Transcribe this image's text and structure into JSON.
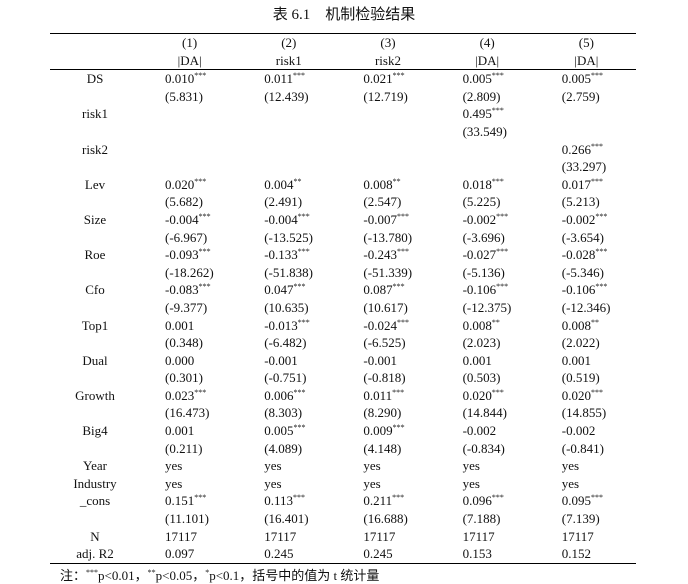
{
  "header": {
    "title": "表 6.1　机制检验结果"
  },
  "table": {
    "columns": [
      {
        "number": "(1)",
        "dep": "|DA|"
      },
      {
        "number": "(2)",
        "dep": "risk1"
      },
      {
        "number": "(3)",
        "dep": "risk2"
      },
      {
        "number": "(4)",
        "dep": "|DA|"
      },
      {
        "number": "(5)",
        "dep": "|DA|"
      }
    ],
    "rows": [
      {
        "label": "DS",
        "coef": [
          {
            "value": "0.010",
            "stars": "***"
          },
          {
            "value": "0.011",
            "stars": "***"
          },
          {
            "value": "0.021",
            "stars": "***"
          },
          {
            "value": "0.005",
            "stars": "***"
          },
          {
            "value": "0.005",
            "stars": "***"
          }
        ],
        "t": [
          "(5.831)",
          "(12.439)",
          "(12.719)",
          "(2.809)",
          "(2.759)"
        ]
      },
      {
        "label": "risk1",
        "coef": [
          null,
          null,
          null,
          {
            "value": "0.495",
            "stars": "***"
          },
          null
        ],
        "t": [
          null,
          null,
          null,
          "(33.549)",
          null
        ]
      },
      {
        "label": "risk2",
        "coef": [
          null,
          null,
          null,
          null,
          {
            "value": "0.266",
            "stars": "***"
          }
        ],
        "t": [
          null,
          null,
          null,
          null,
          "(33.297)"
        ]
      },
      {
        "label": "Lev",
        "coef": [
          {
            "value": "0.020",
            "stars": "***"
          },
          {
            "value": "0.004",
            "stars": "**"
          },
          {
            "value": "0.008",
            "stars": "**"
          },
          {
            "value": "0.018",
            "stars": "***"
          },
          {
            "value": "0.017",
            "stars": "***"
          }
        ],
        "t": [
          "(5.682)",
          "(2.491)",
          "(2.547)",
          "(5.225)",
          "(5.213)"
        ]
      },
      {
        "label": "Size",
        "coef": [
          {
            "value": "-0.004",
            "stars": "***"
          },
          {
            "value": "-0.004",
            "stars": "***"
          },
          {
            "value": "-0.007",
            "stars": "***"
          },
          {
            "value": "-0.002",
            "stars": "***"
          },
          {
            "value": "-0.002",
            "stars": "***"
          }
        ],
        "t": [
          "(-6.967)",
          "(-13.525)",
          "(-13.780)",
          "(-3.696)",
          "(-3.654)"
        ]
      },
      {
        "label": "Roe",
        "coef": [
          {
            "value": "-0.093",
            "stars": "***"
          },
          {
            "value": "-0.133",
            "stars": "***"
          },
          {
            "value": "-0.243",
            "stars": "***"
          },
          {
            "value": "-0.027",
            "stars": "***"
          },
          {
            "value": "-0.028",
            "stars": "***"
          }
        ],
        "t": [
          "(-18.262)",
          "(-51.838)",
          "(-51.339)",
          "(-5.136)",
          "(-5.346)"
        ]
      },
      {
        "label": "Cfo",
        "coef": [
          {
            "value": "-0.083",
            "stars": "***"
          },
          {
            "value": "0.047",
            "stars": "***"
          },
          {
            "value": "0.087",
            "stars": "***"
          },
          {
            "value": "-0.106",
            "stars": "***"
          },
          {
            "value": "-0.106",
            "stars": "***"
          }
        ],
        "t": [
          "(-9.377)",
          "(10.635)",
          "(10.617)",
          "(-12.375)",
          "(-12.346)"
        ]
      },
      {
        "label": "Top1",
        "coef": [
          {
            "value": "0.001",
            "stars": null
          },
          {
            "value": "-0.013",
            "stars": "***"
          },
          {
            "value": "-0.024",
            "stars": "***"
          },
          {
            "value": "0.008",
            "stars": "**"
          },
          {
            "value": "0.008",
            "stars": "**"
          }
        ],
        "t": [
          "(0.348)",
          "(-6.482)",
          "(-6.525)",
          "(2.023)",
          "(2.022)"
        ]
      },
      {
        "label": "Dual",
        "coef": [
          {
            "value": "0.000",
            "stars": null
          },
          {
            "value": "-0.001",
            "stars": null
          },
          {
            "value": "-0.001",
            "stars": null
          },
          {
            "value": "0.001",
            "stars": null
          },
          {
            "value": "0.001",
            "stars": null
          }
        ],
        "t": [
          "(0.301)",
          "(-0.751)",
          "(-0.818)",
          "(0.503)",
          "(0.519)"
        ]
      },
      {
        "label": "Growth",
        "coef": [
          {
            "value": "0.023",
            "stars": "***"
          },
          {
            "value": "0.006",
            "stars": "***"
          },
          {
            "value": "0.011",
            "stars": "***"
          },
          {
            "value": "0.020",
            "stars": "***"
          },
          {
            "value": "0.020",
            "stars": "***"
          }
        ],
        "t": [
          "(16.473)",
          "(8.303)",
          "(8.290)",
          "(14.844)",
          "(14.855)"
        ]
      },
      {
        "label": "Big4",
        "coef": [
          {
            "value": "0.001",
            "stars": null
          },
          {
            "value": "0.005",
            "stars": "***"
          },
          {
            "value": "0.009",
            "stars": "***"
          },
          {
            "value": "-0.002",
            "stars": null
          },
          {
            "value": "-0.002",
            "stars": null
          }
        ],
        "t": [
          "(0.211)",
          "(4.089)",
          "(4.148)",
          "(-0.834)",
          "(-0.841)"
        ]
      },
      {
        "label": "Year",
        "values": [
          "yes",
          "yes",
          "yes",
          "yes",
          "yes"
        ]
      },
      {
        "label": "Industry",
        "values": [
          "yes",
          "yes",
          "yes",
          "yes",
          "yes"
        ]
      },
      {
        "label": "_cons",
        "coef": [
          {
            "value": "0.151",
            "stars": "***"
          },
          {
            "value": "0.113",
            "stars": "***"
          },
          {
            "value": "0.211",
            "stars": "***"
          },
          {
            "value": "0.096",
            "stars": "***"
          },
          {
            "value": "0.095",
            "stars": "***"
          }
        ],
        "t": [
          "(11.101)",
          "(16.401)",
          "(16.688)",
          "(7.188)",
          "(7.139)"
        ]
      },
      {
        "label": "N",
        "values": [
          "17117",
          "17117",
          "17117",
          "17117",
          "17117"
        ]
      },
      {
        "label": "adj. R2",
        "values": [
          "0.097",
          "0.245",
          "0.245",
          "0.153",
          "0.152"
        ]
      }
    ]
  },
  "note": {
    "prefix": "注：",
    "items": [
      {
        "stars": "***",
        "text": "p<0.01，"
      },
      {
        "stars": "**",
        "text": "p<0.05，"
      },
      {
        "stars": "*",
        "text": "p<0.1，括号中的值为 t 统计量"
      }
    ]
  }
}
